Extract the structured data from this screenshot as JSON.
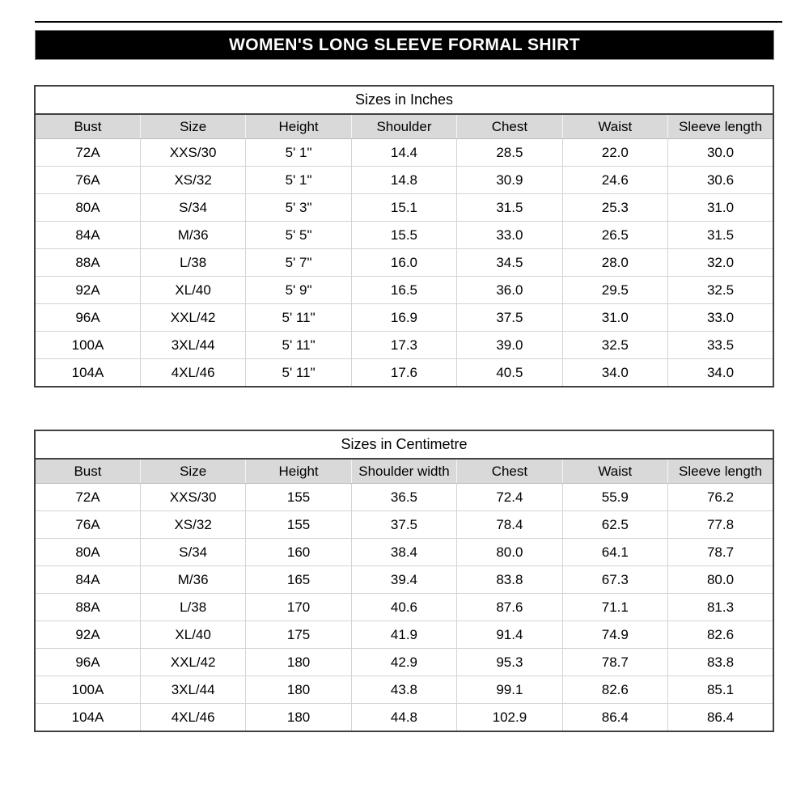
{
  "banner": {
    "title": "WOMEN'S LONG SLEEVE FORMAL SHIRT"
  },
  "colors": {
    "banner_bg": "#000000",
    "banner_text": "#ffffff",
    "banner_outline": "#808080",
    "header_row_bg": "#d9d9d9",
    "table_border": "#404040",
    "gridline": "#d4d4d4",
    "text": "#000000",
    "page_bg": "#ffffff"
  },
  "tables": [
    {
      "title": "Sizes in Inches",
      "headers": [
        "Bust",
        "Size",
        "Height",
        "Shoulder",
        "Chest",
        "Waist",
        "Sleeve length"
      ],
      "rows": [
        [
          "72A",
          "XXS/30",
          "5' 1\"",
          "14.4",
          "28.5",
          "22.0",
          "30.0"
        ],
        [
          "76A",
          "XS/32",
          "5' 1\"",
          "14.8",
          "30.9",
          "24.6",
          "30.6"
        ],
        [
          "80A",
          "S/34",
          "5' 3\"",
          "15.1",
          "31.5",
          "25.3",
          "31.0"
        ],
        [
          "84A",
          "M/36",
          "5' 5\"",
          "15.5",
          "33.0",
          "26.5",
          "31.5"
        ],
        [
          "88A",
          "L/38",
          "5' 7\"",
          "16.0",
          "34.5",
          "28.0",
          "32.0"
        ],
        [
          "92A",
          "XL/40",
          "5' 9\"",
          "16.5",
          "36.0",
          "29.5",
          "32.5"
        ],
        [
          "96A",
          "XXL/42",
          "5' 11\"",
          "16.9",
          "37.5",
          "31.0",
          "33.0"
        ],
        [
          "100A",
          "3XL/44",
          "5' 11\"",
          "17.3",
          "39.0",
          "32.5",
          "33.5"
        ],
        [
          "104A",
          "4XL/46",
          "5' 11\"",
          "17.6",
          "40.5",
          "34.0",
          "34.0"
        ]
      ]
    },
    {
      "title": "Sizes in Centimetre",
      "headers": [
        "Bust",
        "Size",
        "Height",
        "Shoulder width",
        "Chest",
        "Waist",
        "Sleeve length"
      ],
      "rows": [
        [
          "72A",
          "XXS/30",
          "155",
          "36.5",
          "72.4",
          "55.9",
          "76.2"
        ],
        [
          "76A",
          "XS/32",
          "155",
          "37.5",
          "78.4",
          "62.5",
          "77.8"
        ],
        [
          "80A",
          "S/34",
          "160",
          "38.4",
          "80.0",
          "64.1",
          "78.7"
        ],
        [
          "84A",
          "M/36",
          "165",
          "39.4",
          "83.8",
          "67.3",
          "80.0"
        ],
        [
          "88A",
          "L/38",
          "170",
          "40.6",
          "87.6",
          "71.1",
          "81.3"
        ],
        [
          "92A",
          "XL/40",
          "175",
          "41.9",
          "91.4",
          "74.9",
          "82.6"
        ],
        [
          "96A",
          "XXL/42",
          "180",
          "42.9",
          "95.3",
          "78.7",
          "83.8"
        ],
        [
          "100A",
          "3XL/44",
          "180",
          "43.8",
          "99.1",
          "82.6",
          "85.1"
        ],
        [
          "104A",
          "4XL/46",
          "180",
          "44.8",
          "102.9",
          "86.4",
          "86.4"
        ]
      ]
    }
  ]
}
